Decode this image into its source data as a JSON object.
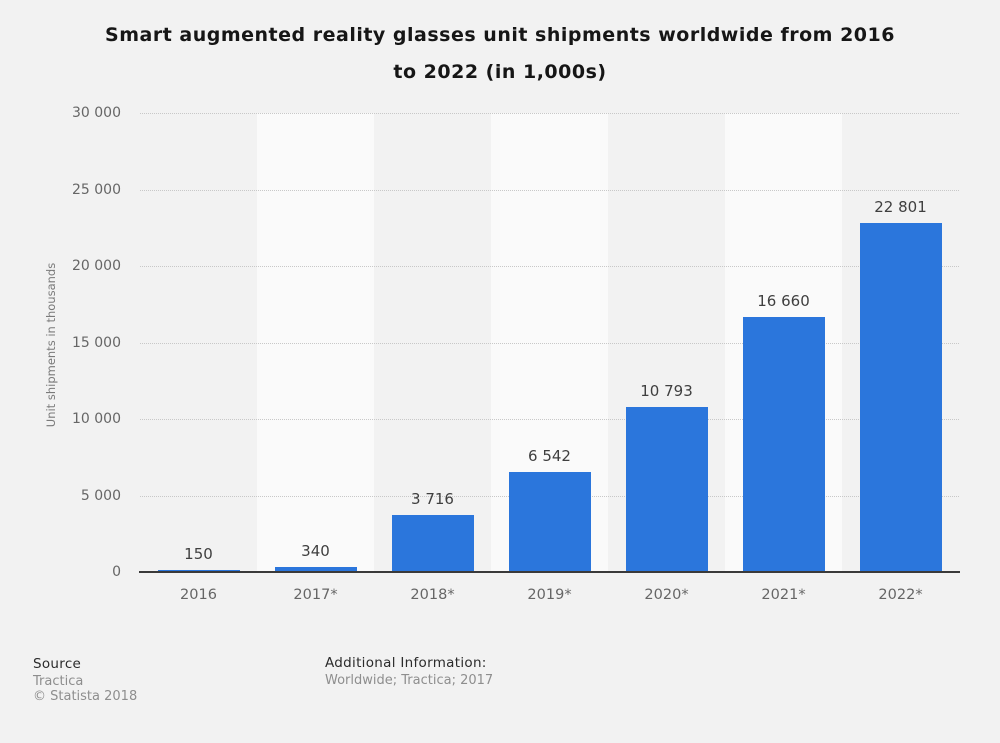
{
  "title_lines": [
    "Smart augmented reality glasses unit shipments worldwide from 2016",
    "to 2022 (in 1,000s)"
  ],
  "chart_data": {
    "type": "bar",
    "title": "Smart augmented reality glasses unit shipments worldwide from 2016 to 2022 (in 1,000s)",
    "categories": [
      "2016",
      "2017*",
      "2018*",
      "2019*",
      "2020*",
      "2021*",
      "2022*"
    ],
    "values": [
      150,
      340,
      3716,
      6542,
      10793,
      16660,
      22801
    ],
    "value_labels": [
      "150",
      "340",
      "3 716",
      "6 542",
      "10 793",
      "16 660",
      "22 801"
    ],
    "xlabel": "",
    "ylabel": "Unit shipments in thousands",
    "ylim": [
      0,
      30000
    ],
    "ytick_values": [
      0,
      5000,
      10000,
      15000,
      20000,
      25000,
      30000
    ],
    "ytick_labels": [
      "0",
      "5 000",
      "10 000",
      "15 000",
      "20 000",
      "25 000",
      "30 000"
    ],
    "grid": "horizontal dotted",
    "legend": false,
    "bar_color": "#2b76dc",
    "alt_band_color": "#fafafa",
    "axis_line_color": "#3a3a3a"
  },
  "footer": {
    "source_label": "Source",
    "source_value": "Tractica",
    "copyright": "© Statista 2018",
    "additional_info_label": "Additional Information:",
    "additional_info_value": "Worldwide; Tractica; 2017"
  }
}
